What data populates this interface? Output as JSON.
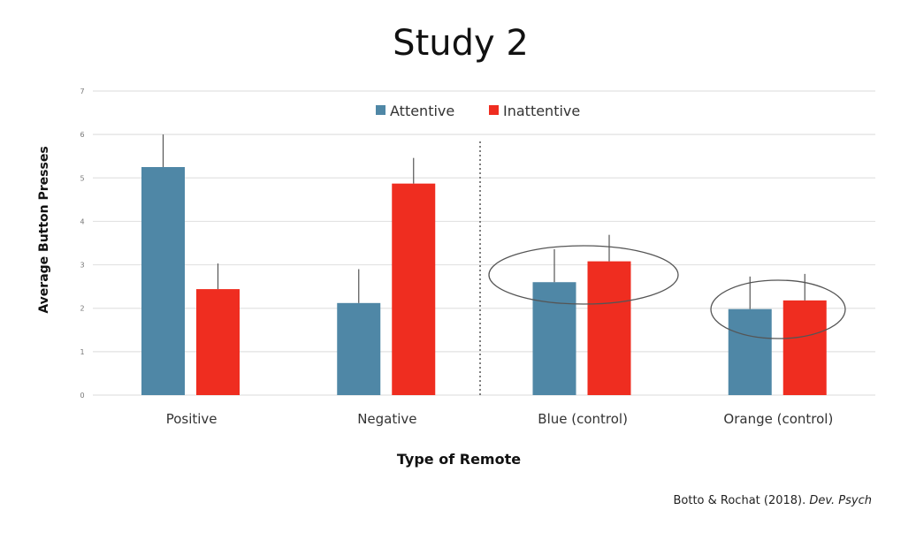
{
  "chart_data": {
    "type": "bar",
    "title": "Study 2",
    "xlabel": "Type of Remote",
    "ylabel": "Average Button Presses",
    "ylim": [
      0,
      7
    ],
    "yticks": [
      "0",
      "1",
      "2",
      "3",
      "4",
      "5",
      "6",
      "7"
    ],
    "grid": true,
    "legend_position": "top-center",
    "categories": [
      "Positive",
      "Negative",
      "Blue (control)",
      "Orange (control)"
    ],
    "series": [
      {
        "name": "Attentive",
        "color": "#4f87a6",
        "values": [
          5.25,
          2.12,
          2.6,
          1.98
        ],
        "error_upper": [
          6.0,
          2.9,
          3.36,
          2.73
        ]
      },
      {
        "name": "Inattentive",
        "color": "#ef2d20",
        "values": [
          2.44,
          4.87,
          3.08,
          2.18
        ],
        "error_upper": [
          3.03,
          5.46,
          3.69,
          2.79
        ]
      }
    ],
    "annotations": [
      "dotted divider between Negative and Blue (control)",
      "ellipses around control groups"
    ]
  },
  "citation": {
    "authors": "Botto & Rochat (2018). ",
    "journal": "Dev. Psych"
  }
}
